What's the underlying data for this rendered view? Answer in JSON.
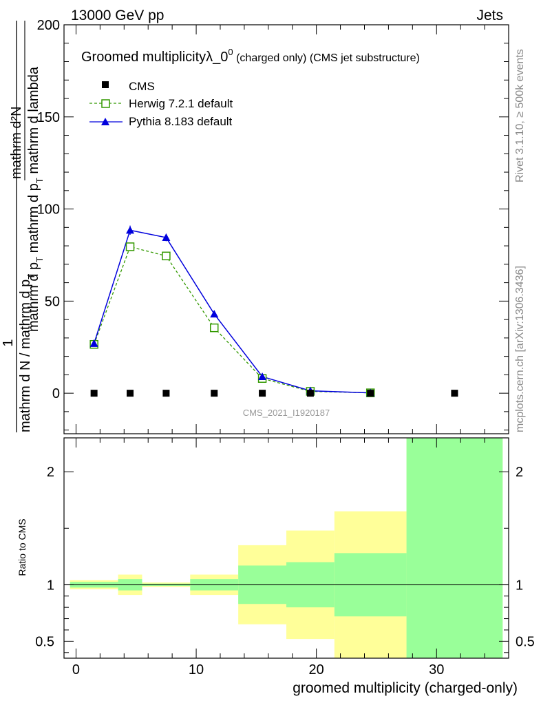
{
  "header": {
    "left": "13000 GeV pp",
    "right": "Jets"
  },
  "side": {
    "rivet": "Rivet 3.1.10, ≥ 500k events",
    "mcplots": "mcplots.cern.ch [arXiv:1306.3436]"
  },
  "colors": {
    "cms": "#000000",
    "herwig": "#339900",
    "pythia": "#0000dd",
    "band_yellow": "#ffff99",
    "band_green": "#99ff99",
    "watermark": "#999999"
  },
  "chart_data": [
    {
      "type": "line",
      "title_main": "Groomed multiplicityλ_0",
      "title_sup": "0",
      "title_tail": " (charged only) (CMS jet substructure)",
      "ylabel": "1 / mathrm d N / mathrm d p_T  mathrm d^2N / mathrm d p_T mathrm d lambda",
      "ylabel_lines": {
        "num": "mathrm d²N",
        "den1": "mathrm d p",
        "den2": " mathrm d lambda",
        "sub": "T",
        "prefix_num": "1",
        "prefix_den": "mathrm d N / mathrm d p",
        "prefix_den_tail": "mathrm d p",
        "one": "1"
      },
      "ylim": [
        -22,
        200
      ],
      "yticks": [
        "0",
        "50",
        "100",
        "150",
        "200"
      ],
      "yticks_values": [
        0,
        50,
        100,
        150,
        200
      ],
      "xlim": [
        -1,
        36
      ],
      "watermark": "CMS_2021_I1920187",
      "legend": [
        {
          "name": "CMS",
          "marker": "square"
        },
        {
          "name": "Herwig 7.2.1 default",
          "marker": "open-square"
        },
        {
          "name": "Pythia 8.183 default",
          "marker": "triangle"
        }
      ],
      "series": [
        {
          "name": "CMS",
          "x": [
            1.5,
            4.5,
            7.5,
            11.5,
            15.5,
            19.5,
            24.5,
            31.5
          ],
          "values": [
            0,
            0,
            0,
            0,
            0,
            0,
            0,
            0
          ]
        },
        {
          "name": "Herwig 7.2.1 default",
          "x": [
            1.5,
            4.5,
            7.5,
            11.5,
            15.5,
            19.5,
            24.5
          ],
          "values": [
            26.5,
            79.5,
            74.5,
            35.5,
            8,
            1,
            0.2
          ]
        },
        {
          "name": "Pythia 8.183 default",
          "x": [
            1.5,
            4.5,
            7.5,
            11.5,
            15.5,
            19.5,
            24.5
          ],
          "values": [
            27,
            88.5,
            84.5,
            43,
            9,
            1.3,
            0.2
          ],
          "errors": [
            0.5,
            2.5,
            2,
            1,
            0.5,
            0.2,
            0.1
          ]
        }
      ]
    },
    {
      "type": "bar",
      "title": "ratio",
      "ylabel": "Ratio to CMS",
      "ylim": [
        0.35,
        2.3
      ],
      "yticks": [
        "0.5",
        "1",
        "2"
      ],
      "yticks_values": [
        0.5,
        1,
        2
      ],
      "xlabel": "groomed multiplicity (charged-only)",
      "xticks": [
        "0",
        "10",
        "20",
        "30"
      ],
      "xticks_values": [
        0,
        10,
        20,
        30
      ],
      "bins": [
        {
          "lo": -0.5,
          "hi": 3.5,
          "yellow": [
            0.96,
            1.04
          ],
          "green": [
            0.975,
            1.025
          ]
        },
        {
          "lo": 3.5,
          "hi": 5.5,
          "yellow": [
            0.91,
            1.09
          ],
          "green": [
            0.95,
            1.05
          ]
        },
        {
          "lo": 5.5,
          "hi": 9.5,
          "yellow": [
            0.98,
            1.02
          ],
          "green": [
            0.99,
            1.01
          ]
        },
        {
          "lo": 9.5,
          "hi": 13.5,
          "yellow": [
            0.91,
            1.09
          ],
          "green": [
            0.95,
            1.05
          ]
        },
        {
          "lo": 13.5,
          "hi": 17.5,
          "yellow": [
            0.65,
            1.35
          ],
          "green": [
            0.83,
            1.17
          ]
        },
        {
          "lo": 17.5,
          "hi": 21.5,
          "yellow": [
            0.52,
            1.48
          ],
          "green": [
            0.8,
            1.2
          ]
        },
        {
          "lo": 21.5,
          "hi": 27.5,
          "yellow": [
            0.35,
            1.65
          ],
          "green": [
            0.72,
            1.28
          ]
        },
        {
          "lo": 27.5,
          "hi": 35.5,
          "yellow": [
            0.35,
            2.3
          ],
          "green": [
            0.35,
            2.3
          ]
        }
      ]
    }
  ]
}
